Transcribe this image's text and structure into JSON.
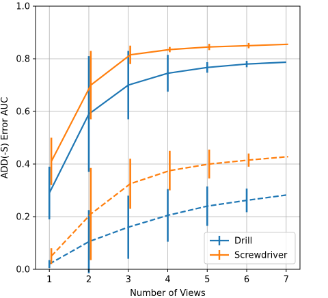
{
  "chart_data": {
    "type": "line",
    "xlabel": "Number of Views",
    "ylabel": "ADD(-S) Error AUC",
    "xlim": [
      0.65,
      7.35
    ],
    "ylim": [
      0,
      1.0
    ],
    "xticks": [
      "1",
      "2",
      "3",
      "4",
      "5",
      "6",
      "7"
    ],
    "yticks": [
      "0.0",
      "0.2",
      "0.4",
      "0.6",
      "0.8",
      "1.0"
    ],
    "grid": true,
    "legend_position": "lower-right",
    "series": [
      {
        "name": "Drill",
        "color": "#1f77b4",
        "linestyle": "solid",
        "x": [
          1,
          2,
          3,
          4,
          5,
          6,
          7
        ],
        "y": [
          0.29,
          0.59,
          0.7,
          0.745,
          0.767,
          0.78,
          0.787
        ],
        "err": [
          0.1,
          0.22,
          0.13,
          0.07,
          0.02,
          0.012,
          0
        ]
      },
      {
        "name": "Screwdriver",
        "color": "#ff7f0e",
        "linestyle": "solid",
        "x": [
          1.05,
          2.05,
          3.05,
          4.05,
          5.05,
          6.05,
          7.05
        ],
        "y": [
          0.41,
          0.7,
          0.815,
          0.835,
          0.845,
          0.85,
          0.855
        ],
        "err": [
          0.09,
          0.13,
          0.035,
          0.01,
          0.012,
          0.01,
          0
        ]
      },
      {
        "name": "",
        "color": "#1f77b4",
        "linestyle": "dashed",
        "x": [
          1,
          2,
          3,
          4,
          5,
          6,
          7
        ],
        "y": [
          0.02,
          0.105,
          0.16,
          0.205,
          0.24,
          0.262,
          0.282
        ],
        "err": [
          0.015,
          0.12,
          0.12,
          0.1,
          0.075,
          0.045,
          0
        ]
      },
      {
        "name": "",
        "color": "#ff7f0e",
        "linestyle": "dashed",
        "x": [
          1.05,
          2.05,
          3.05,
          4.05,
          5.05,
          6.05,
          7.05
        ],
        "y": [
          0.05,
          0.21,
          0.325,
          0.375,
          0.4,
          0.415,
          0.428
        ],
        "err": [
          0.03,
          0.175,
          0.095,
          0.075,
          0.055,
          0.025,
          0
        ]
      }
    ],
    "legend": [
      "Drill",
      "Screwdriver"
    ]
  }
}
